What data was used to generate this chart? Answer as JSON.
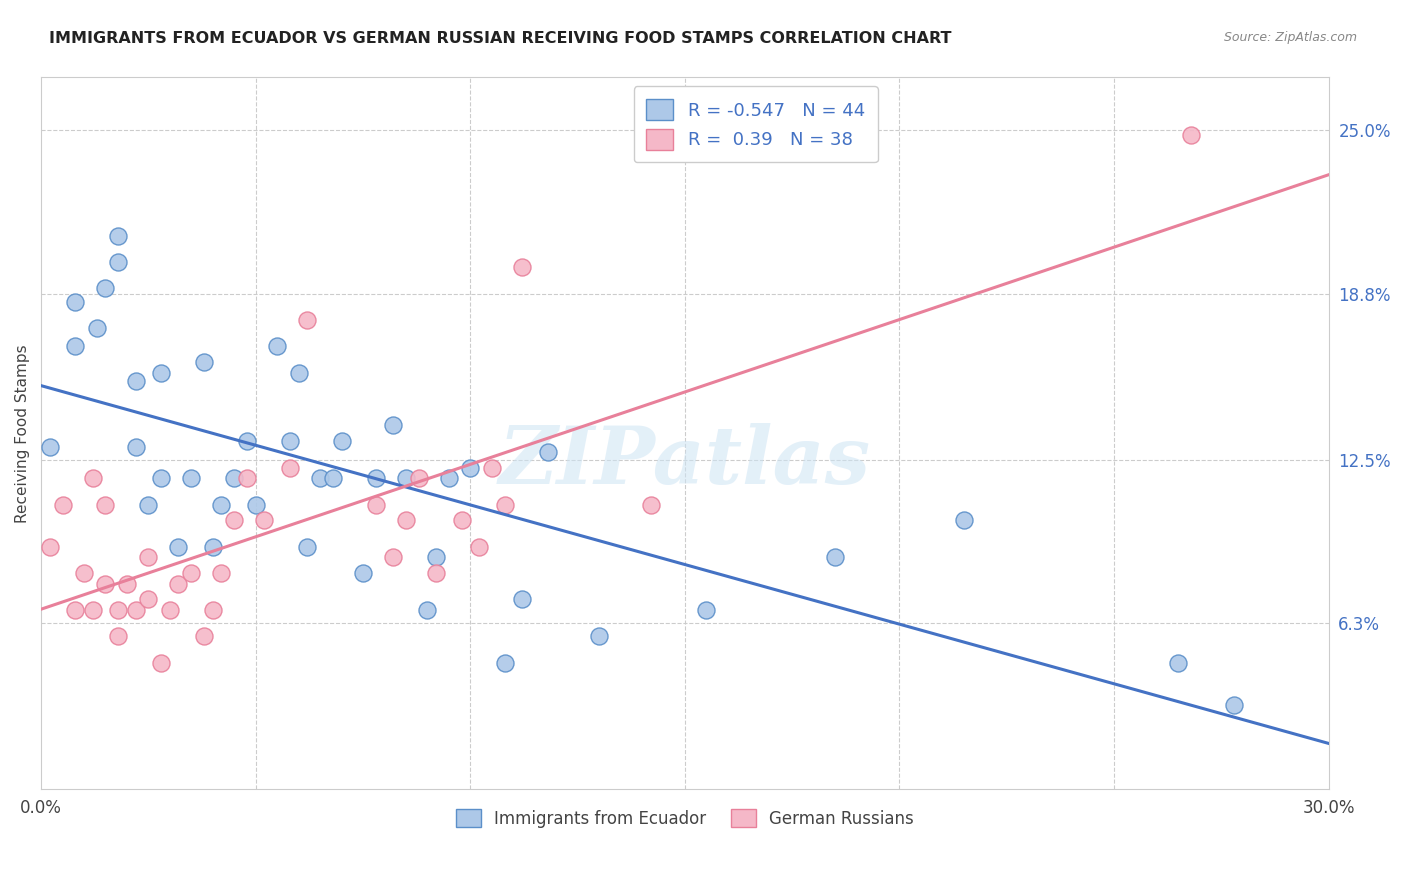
{
  "title": "IMMIGRANTS FROM ECUADOR VS GERMAN RUSSIAN RECEIVING FOOD STAMPS CORRELATION CHART",
  "source": "Source: ZipAtlas.com",
  "ylabel": "Receiving Food Stamps",
  "xlim": [
    0.0,
    0.3
  ],
  "ylim": [
    0.0,
    0.27
  ],
  "x_ticks": [
    0.0,
    0.3
  ],
  "x_tick_labels": [
    "0.0%",
    "30.0%"
  ],
  "y_ticks_right": [
    0.063,
    0.125,
    0.188,
    0.25
  ],
  "y_tick_labels_right": [
    "6.3%",
    "12.5%",
    "18.8%",
    "25.0%"
  ],
  "ecuador_color": "#adc8e8",
  "ecuador_edge_color": "#5b8fc9",
  "german_color": "#f5b8c8",
  "german_edge_color": "#e8809a",
  "ecuador_line_color": "#4472c4",
  "german_line_color": "#e8809a",
  "r_ecuador": -0.547,
  "n_ecuador": 44,
  "r_german": 0.39,
  "n_german": 38,
  "legend_label_ecuador": "Immigrants from Ecuador",
  "legend_label_german": "German Russians",
  "watermark": "ZIPatlas",
  "grid_color": "#cccccc",
  "ecuador_x": [
    0.002,
    0.008,
    0.008,
    0.013,
    0.015,
    0.018,
    0.018,
    0.022,
    0.022,
    0.025,
    0.028,
    0.028,
    0.032,
    0.035,
    0.038,
    0.04,
    0.042,
    0.045,
    0.048,
    0.05,
    0.055,
    0.058,
    0.06,
    0.062,
    0.065,
    0.068,
    0.07,
    0.075,
    0.078,
    0.082,
    0.085,
    0.09,
    0.092,
    0.095,
    0.1,
    0.108,
    0.112,
    0.118,
    0.13,
    0.155,
    0.185,
    0.215,
    0.265,
    0.278
  ],
  "ecuador_y": [
    0.13,
    0.168,
    0.185,
    0.175,
    0.19,
    0.2,
    0.21,
    0.13,
    0.155,
    0.108,
    0.118,
    0.158,
    0.092,
    0.118,
    0.162,
    0.092,
    0.108,
    0.118,
    0.132,
    0.108,
    0.168,
    0.132,
    0.158,
    0.092,
    0.118,
    0.118,
    0.132,
    0.082,
    0.118,
    0.138,
    0.118,
    0.068,
    0.088,
    0.118,
    0.122,
    0.048,
    0.072,
    0.128,
    0.058,
    0.068,
    0.088,
    0.102,
    0.048,
    0.032
  ],
  "german_x": [
    0.002,
    0.005,
    0.008,
    0.01,
    0.012,
    0.012,
    0.015,
    0.015,
    0.018,
    0.018,
    0.02,
    0.022,
    0.025,
    0.025,
    0.028,
    0.03,
    0.032,
    0.035,
    0.038,
    0.04,
    0.042,
    0.045,
    0.048,
    0.052,
    0.058,
    0.062,
    0.078,
    0.082,
    0.085,
    0.088,
    0.092,
    0.098,
    0.102,
    0.105,
    0.108,
    0.112,
    0.142,
    0.268
  ],
  "german_y": [
    0.092,
    0.108,
    0.068,
    0.082,
    0.118,
    0.068,
    0.078,
    0.108,
    0.058,
    0.068,
    0.078,
    0.068,
    0.072,
    0.088,
    0.048,
    0.068,
    0.078,
    0.082,
    0.058,
    0.068,
    0.082,
    0.102,
    0.118,
    0.102,
    0.122,
    0.178,
    0.108,
    0.088,
    0.102,
    0.118,
    0.082,
    0.102,
    0.092,
    0.122,
    0.108,
    0.198,
    0.108,
    0.248
  ]
}
